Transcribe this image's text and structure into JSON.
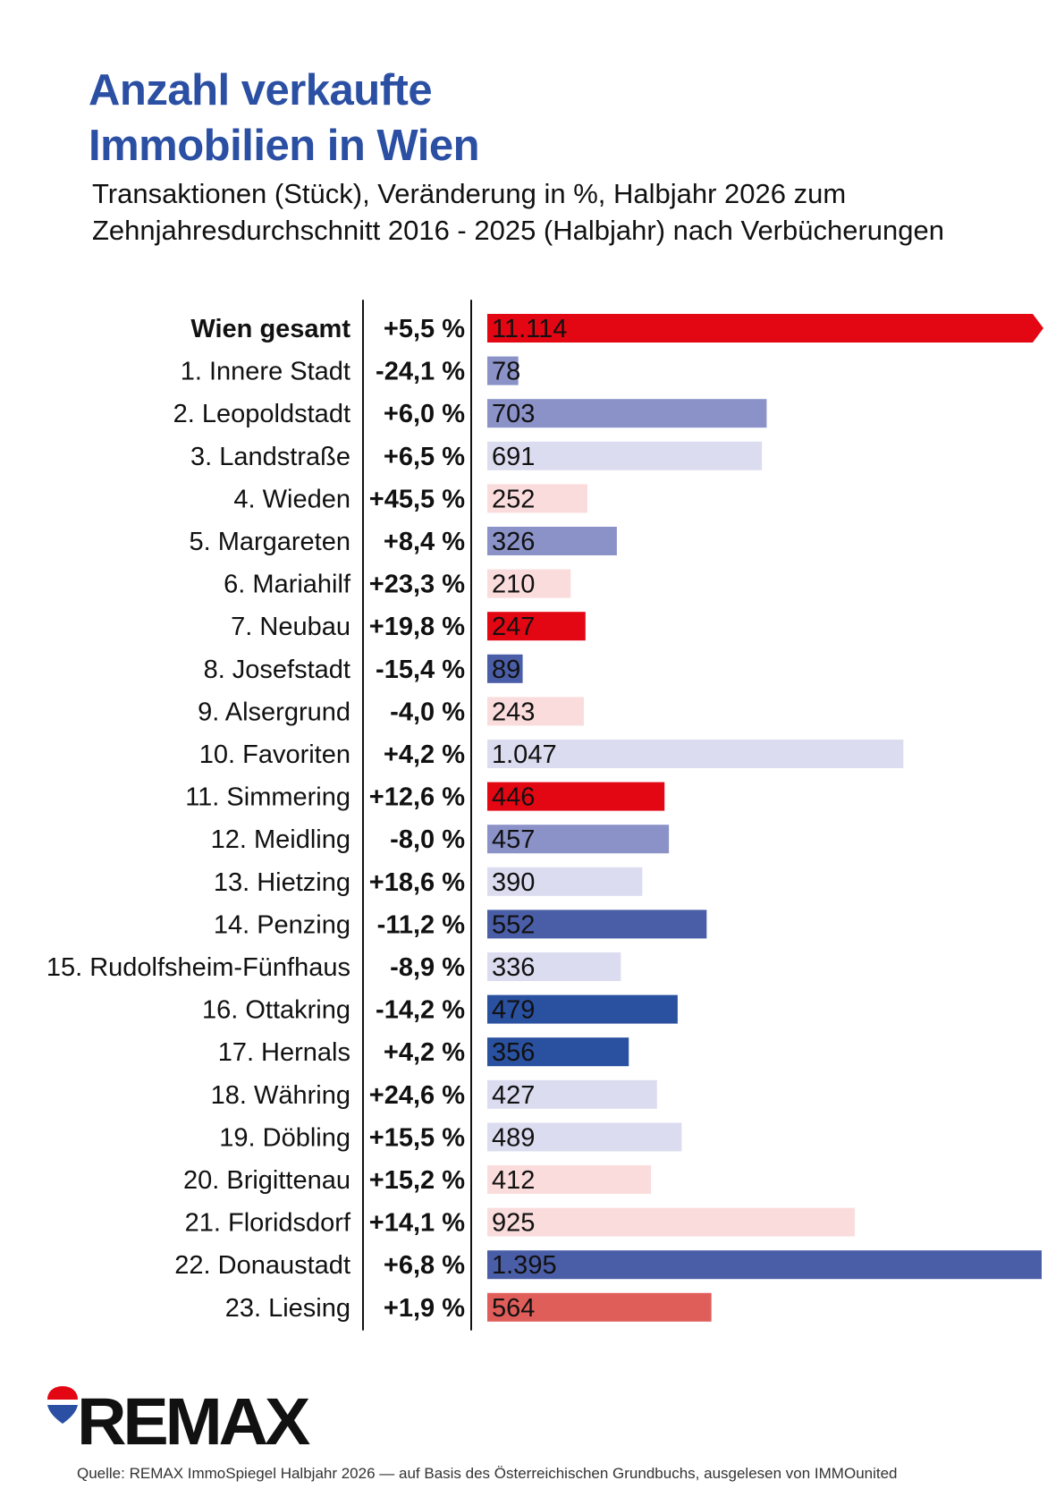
{
  "chart_data": {
    "type": "bar",
    "orientation": "horizontal",
    "title_lines": [
      "Anzahl verkaufte",
      "Immobilien in Wien"
    ],
    "subtitle_lines": [
      "Transaktionen (Stück), Veränderung in %, Halbjahr 2026 zum",
      "Zehnjahresdurchschnitt 2016 - 2025 (Halbjahr) nach Verbücherungen"
    ],
    "categories": [
      "Wien gesamt",
      "1. Innere Stadt",
      "2. Leopoldstadt",
      "3. Landstraße",
      "4. Wieden",
      "5. Margareten",
      "6. Mariahilf",
      "7. Neubau",
      "8. Josefstadt",
      "9. Alsergrund",
      "10. Favoriten",
      "11. Simmering",
      "12. Meidling",
      "13. Hietzing",
      "14. Penzing",
      "15. Rudolfsheim-Fünfhaus",
      "16. Ottakring",
      "17. Hernals",
      "18. Währing",
      "19. Döbling",
      "20. Brigittenau",
      "21. Floridsdorf",
      "22. Donaustadt",
      "23. Liesing"
    ],
    "changes": [
      "+5,5 %",
      "-24,1 %",
      "+6,0 %",
      "+6,5 %",
      "+45,5 %",
      "+8,4 %",
      "+23,3 %",
      "+19,8 %",
      "-15,4 %",
      "-4,0 %",
      "+4,2 %",
      "+12,6 %",
      "-8,0 %",
      "+18,6 %",
      "-11,2 %",
      "-8,9 %",
      "-14,2 %",
      "+4,2 %",
      "+24,6 %",
      "+15,5 %",
      "+15,2 %",
      "+14,1 %",
      "+6,8 %",
      "+1,9 %"
    ],
    "value_labels": [
      "11.114",
      "78",
      "703",
      "691",
      "252",
      "326",
      "210",
      "247",
      "89",
      "243",
      "1.047",
      "446",
      "457",
      "390",
      "552",
      "336",
      "479",
      "356",
      "427",
      "489",
      "412",
      "925",
      "1.395",
      "564"
    ],
    "values": [
      11114,
      78,
      703,
      691,
      252,
      326,
      210,
      247,
      89,
      243,
      1047,
      446,
      457,
      390,
      552,
      336,
      479,
      356,
      427,
      489,
      412,
      925,
      1395,
      564
    ],
    "bar_colors": [
      "#e30613",
      "#8b92c8",
      "#8b92c8",
      "#dcdcf0",
      "#fbdcdc",
      "#8b92c8",
      "#fbdcdc",
      "#e30613",
      "#4a5ea8",
      "#fbdcdc",
      "#dcdcf0",
      "#e30613",
      "#8b92c8",
      "#dcdcf0",
      "#4a5ea8",
      "#dcdcf0",
      "#2a50a0",
      "#2a50a0",
      "#dcdcf0",
      "#dcdcf0",
      "#fbdcdc",
      "#fbdcdc",
      "#4a5ea8",
      "#e05e5a"
    ],
    "truncated_category": "Wien gesamt",
    "bold_category": "Wien gesamt",
    "xlim": [
      0,
      1395
    ],
    "xlabel": "",
    "ylabel": "",
    "grid": false
  },
  "colors": {
    "title": "#2a4fa3",
    "remax_red": "#e30613",
    "remax_blue": "#2a4fa3"
  },
  "logo": {
    "wordmark": "REMAX",
    "icon": "balloon-icon"
  },
  "source_note": "Quelle: REMAX ImmoSpiegel Halbjahr 2026 — auf Basis des Österreichischen Grundbuchs, ausgelesen von IMMOunited"
}
